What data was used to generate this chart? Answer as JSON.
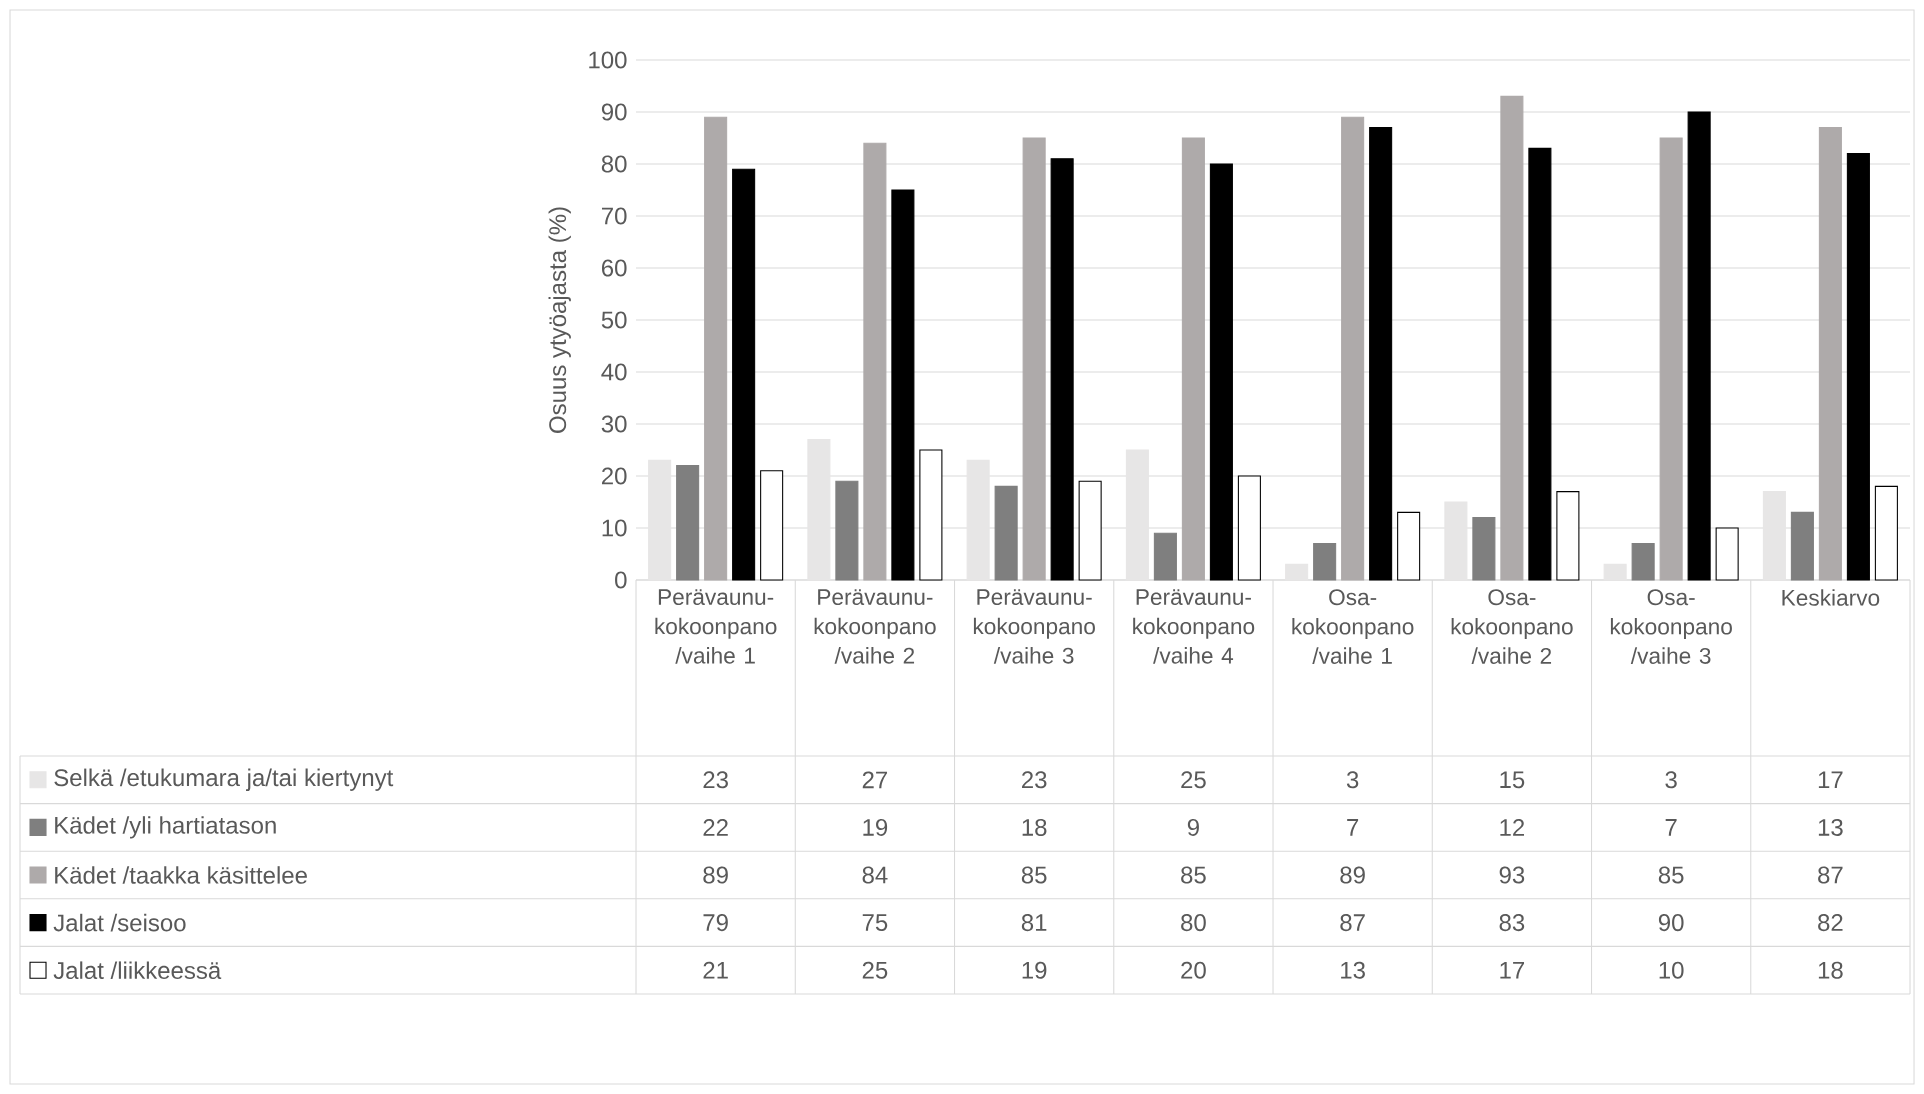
{
  "chart_data": {
    "type": "bar",
    "ylabel": "Osuus ytyöajasta (%)",
    "categories": [
      "Perävaunu-kokoonpano /vaihe 1",
      "Perävaunu-kokoonpano /vaihe 2",
      "Perävaunu-kokoonpano /vaihe 3",
      "Perävaunu-kokoonpano /vaihe 4",
      "Osa-kokoonpano /vaihe 1",
      "Osa-kokoonpano /vaihe 2",
      "Osa-kokoonpano /vaihe 3",
      "Keskiarvo"
    ],
    "series": [
      {
        "name": "Selkä /etukumara ja/tai kiertynyt",
        "color": "#e7e6e6",
        "values": [
          23,
          27,
          23,
          25,
          3,
          15,
          3,
          17
        ]
      },
      {
        "name": "Kädet /yli hartiatason",
        "color": "#7f7f7f",
        "values": [
          22,
          19,
          18,
          9,
          7,
          12,
          7,
          13
        ]
      },
      {
        "name": "Kädet /taakka käsittelee",
        "color": "#aeaaaa",
        "values": [
          89,
          84,
          85,
          85,
          89,
          93,
          85,
          87
        ]
      },
      {
        "name": "Jalat /seisoo",
        "color": "#000000",
        "values": [
          79,
          75,
          81,
          80,
          87,
          83,
          90,
          82
        ]
      },
      {
        "name": "Jalat /liikkeessä",
        "color": "#ffffff",
        "values": [
          21,
          25,
          19,
          20,
          13,
          17,
          10,
          18
        ]
      }
    ],
    "ylim": [
      0,
      100
    ],
    "yticks": [
      0,
      10,
      20,
      30,
      40,
      50,
      60,
      70,
      80,
      90,
      100
    ],
    "grid": "y",
    "legend": "bottom left",
    "data_labels": true
  }
}
